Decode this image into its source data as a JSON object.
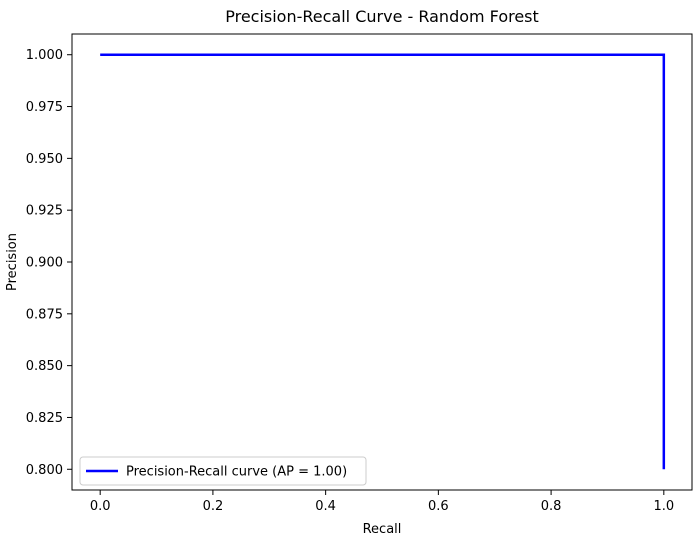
{
  "chart_data": {
    "type": "line",
    "title": "Precision-Recall Curve - Random Forest",
    "xlabel": "Recall",
    "ylabel": "Precision",
    "xlim": [
      -0.05,
      1.05
    ],
    "ylim": [
      0.79,
      1.01
    ],
    "x_ticks": [
      0.0,
      0.2,
      0.4,
      0.6,
      0.8,
      1.0
    ],
    "x_tick_labels": [
      "0.0",
      "0.2",
      "0.4",
      "0.6",
      "0.8",
      "1.0"
    ],
    "y_ticks": [
      0.8,
      0.825,
      0.85,
      0.875,
      0.9,
      0.925,
      0.95,
      0.975,
      1.0
    ],
    "y_tick_labels": [
      "0.800",
      "0.825",
      "0.850",
      "0.875",
      "0.900",
      "0.925",
      "0.950",
      "0.975",
      "1.000"
    ],
    "grid": false,
    "legend_position": "lower-left",
    "series": [
      {
        "name": "Precision-Recall curve (AP = 1.00)",
        "color": "#0000ff",
        "x": [
          0.0,
          1.0,
          1.0
        ],
        "y": [
          1.0,
          1.0,
          0.8
        ]
      }
    ]
  }
}
